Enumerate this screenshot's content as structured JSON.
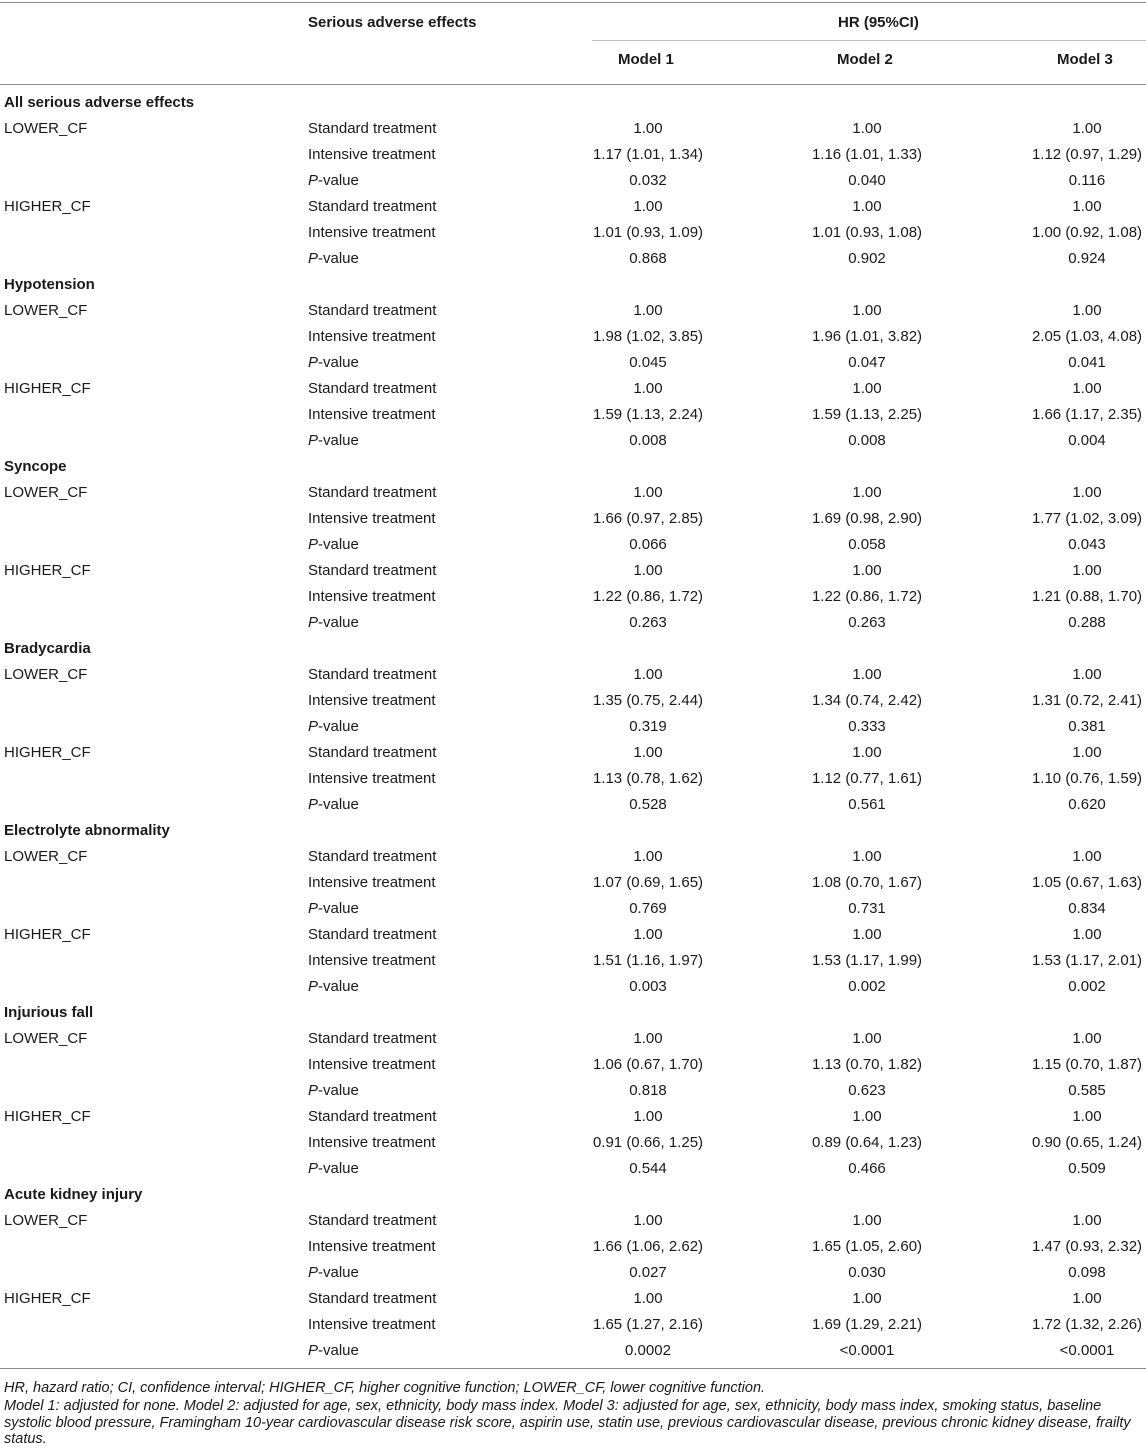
{
  "header": {
    "col_effects": "Serious adverse effects",
    "hr_group": "HR (95%CI)",
    "models": [
      "Model 1",
      "Model 2",
      "Model 3"
    ]
  },
  "pvalue_label_italic": "P",
  "pvalue_label_rest": "-value",
  "sections": [
    {
      "title": "All serious adverse effects",
      "groups": [
        {
          "name": "LOWER_CF",
          "rows": [
            {
              "label": "Standard treatment",
              "values": [
                "1.00",
                "1.00",
                "1.00"
              ]
            },
            {
              "label": "Intensive treatment",
              "values": [
                "1.17 (1.01, 1.34)",
                "1.16 (1.01, 1.33)",
                "1.12 (0.97, 1.29)"
              ]
            },
            {
              "label": "P-value",
              "values": [
                "0.032",
                "0.040",
                "0.116"
              ]
            }
          ]
        },
        {
          "name": "HIGHER_CF",
          "rows": [
            {
              "label": "Standard treatment",
              "values": [
                "1.00",
                "1.00",
                "1.00"
              ]
            },
            {
              "label": "Intensive treatment",
              "values": [
                "1.01 (0.93, 1.09)",
                "1.01 (0.93, 1.08)",
                "1.00 (0.92, 1.08)"
              ]
            },
            {
              "label": "P-value",
              "values": [
                "0.868",
                "0.902",
                "0.924"
              ]
            }
          ]
        }
      ]
    },
    {
      "title": "Hypotension",
      "groups": [
        {
          "name": "LOWER_CF",
          "rows": [
            {
              "label": "Standard treatment",
              "values": [
                "1.00",
                "1.00",
                "1.00"
              ]
            },
            {
              "label": "Intensive treatment",
              "values": [
                "1.98 (1.02, 3.85)",
                "1.96 (1.01, 3.82)",
                "2.05 (1.03, 4.08)"
              ]
            },
            {
              "label": "P-value",
              "values": [
                "0.045",
                "0.047",
                "0.041"
              ]
            }
          ]
        },
        {
          "name": "HIGHER_CF",
          "rows": [
            {
              "label": "Standard treatment",
              "values": [
                "1.00",
                "1.00",
                "1.00"
              ]
            },
            {
              "label": "Intensive treatment",
              "values": [
                "1.59 (1.13, 2.24)",
                "1.59 (1.13, 2.25)",
                "1.66 (1.17, 2.35)"
              ]
            },
            {
              "label": "P-value",
              "values": [
                "0.008",
                "0.008",
                "0.004"
              ]
            }
          ]
        }
      ]
    },
    {
      "title": "Syncope",
      "groups": [
        {
          "name": "LOWER_CF",
          "rows": [
            {
              "label": "Standard treatment",
              "values": [
                "1.00",
                "1.00",
                "1.00"
              ]
            },
            {
              "label": "Intensive treatment",
              "values": [
                "1.66 (0.97, 2.85)",
                "1.69 (0.98, 2.90)",
                "1.77 (1.02, 3.09)"
              ]
            },
            {
              "label": "P-value",
              "values": [
                "0.066",
                "0.058",
                "0.043"
              ]
            }
          ]
        },
        {
          "name": "HIGHER_CF",
          "rows": [
            {
              "label": "Standard treatment",
              "values": [
                "1.00",
                "1.00",
                "1.00"
              ]
            },
            {
              "label": "Intensive treatment",
              "values": [
                "1.22 (0.86, 1.72)",
                "1.22 (0.86, 1.72)",
                "1.21 (0.88, 1.70)"
              ]
            },
            {
              "label": "P-value",
              "values": [
                "0.263",
                "0.263",
                "0.288"
              ]
            }
          ]
        }
      ]
    },
    {
      "title": "Bradycardia",
      "groups": [
        {
          "name": "LOWER_CF",
          "rows": [
            {
              "label": "Standard treatment",
              "values": [
                "1.00",
                "1.00",
                "1.00"
              ]
            },
            {
              "label": "Intensive treatment",
              "values": [
                "1.35 (0.75, 2.44)",
                "1.34 (0.74, 2.42)",
                "1.31 (0.72, 2.41)"
              ]
            },
            {
              "label": "P-value",
              "values": [
                "0.319",
                "0.333",
                "0.381"
              ]
            }
          ]
        },
        {
          "name": "HIGHER_CF",
          "rows": [
            {
              "label": "Standard treatment",
              "values": [
                "1.00",
                "1.00",
                "1.00"
              ]
            },
            {
              "label": "Intensive treatment",
              "values": [
                "1.13 (0.78, 1.62)",
                "1.12 (0.77, 1.61)",
                "1.10 (0.76, 1.59)"
              ]
            },
            {
              "label": "P-value",
              "values": [
                "0.528",
                "0.561",
                "0.620"
              ]
            }
          ]
        }
      ]
    },
    {
      "title": "Electrolyte abnormality",
      "groups": [
        {
          "name": "LOWER_CF",
          "rows": [
            {
              "label": "Standard treatment",
              "values": [
                "1.00",
                "1.00",
                "1.00"
              ]
            },
            {
              "label": "Intensive treatment",
              "values": [
                "1.07 (0.69, 1.65)",
                "1.08 (0.70, 1.67)",
                "1.05 (0.67, 1.63)"
              ]
            },
            {
              "label": "P-value",
              "values": [
                "0.769",
                "0.731",
                "0.834"
              ]
            }
          ]
        },
        {
          "name": "HIGHER_CF",
          "rows": [
            {
              "label": "Standard treatment",
              "values": [
                "1.00",
                "1.00",
                "1.00"
              ]
            },
            {
              "label": "Intensive treatment",
              "values": [
                "1.51 (1.16, 1.97)",
                "1.53 (1.17, 1.99)",
                "1.53 (1.17, 2.01)"
              ]
            },
            {
              "label": "P-value",
              "values": [
                "0.003",
                "0.002",
                "0.002"
              ]
            }
          ]
        }
      ]
    },
    {
      "title": "Injurious fall",
      "groups": [
        {
          "name": "LOWER_CF",
          "rows": [
            {
              "label": "Standard treatment",
              "values": [
                "1.00",
                "1.00",
                "1.00"
              ]
            },
            {
              "label": "Intensive treatment",
              "values": [
                "1.06 (0.67, 1.70)",
                "1.13 (0.70, 1.82)",
                "1.15 (0.70, 1.87)"
              ]
            },
            {
              "label": "P-value",
              "values": [
                "0.818",
                "0.623",
                "0.585"
              ]
            }
          ]
        },
        {
          "name": "HIGHER_CF",
          "rows": [
            {
              "label": "Standard treatment",
              "values": [
                "1.00",
                "1.00",
                "1.00"
              ]
            },
            {
              "label": "Intensive treatment",
              "values": [
                "0.91 (0.66, 1.25)",
                "0.89 (0.64, 1.23)",
                "0.90 (0.65, 1.24)"
              ]
            },
            {
              "label": "P-value",
              "values": [
                "0.544",
                "0.466",
                "0.509"
              ]
            }
          ]
        }
      ]
    },
    {
      "title": "Acute kidney injury",
      "groups": [
        {
          "name": "LOWER_CF",
          "rows": [
            {
              "label": "Standard treatment",
              "values": [
                "1.00",
                "1.00",
                "1.00"
              ]
            },
            {
              "label": "Intensive treatment",
              "values": [
                "1.66 (1.06, 2.62)",
                "1.65 (1.05, 2.60)",
                "1.47 (0.93, 2.32)"
              ]
            },
            {
              "label": "P-value",
              "values": [
                "0.027",
                "0.030",
                "0.098"
              ]
            }
          ]
        },
        {
          "name": "HIGHER_CF",
          "rows": [
            {
              "label": "Standard treatment",
              "values": [
                "1.00",
                "1.00",
                "1.00"
              ]
            },
            {
              "label": "Intensive treatment",
              "values": [
                "1.65 (1.27, 2.16)",
                "1.69 (1.29, 2.21)",
                "1.72 (1.32, 2.26)"
              ]
            },
            {
              "label": "P-value",
              "values": [
                "0.0002",
                "<0.0001",
                "<0.0001"
              ]
            }
          ]
        }
      ]
    }
  ],
  "footnotes": [
    "HR, hazard ratio; CI, confidence interval; HIGHER_CF, higher cognitive function; LOWER_CF, lower cognitive function.",
    "Model 1: adjusted for none. Model 2: adjusted for age, sex, ethnicity, body mass index. Model 3: adjusted for age, sex, ethnicity, body mass index, smoking status, baseline systolic blood pressure, Framingham 10-year cardiovascular disease risk score, aspirin use, statin use, previous cardiovascular disease, previous chronic kidney disease, frailty status."
  ]
}
